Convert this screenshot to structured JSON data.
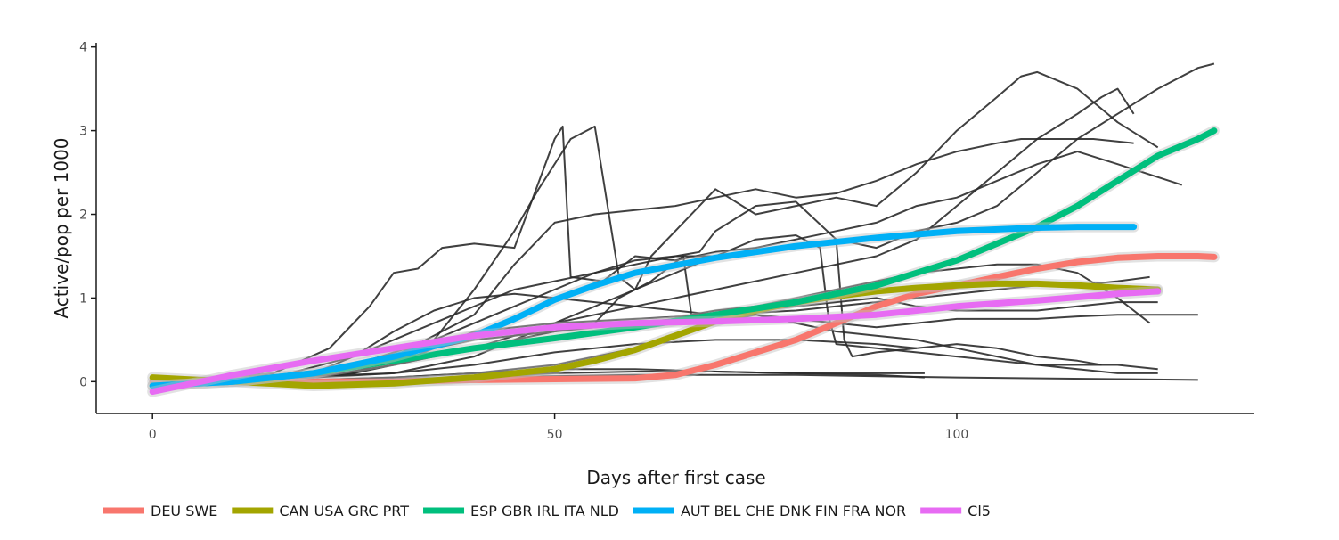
{
  "chart_data": {
    "type": "line",
    "title": "",
    "xlabel": "Days after first case",
    "ylabel": "Active/pop per 1000",
    "xlim": [
      -7,
      137
    ],
    "ylim": [
      -0.38,
      4.05
    ],
    "x_ticks": [
      0,
      50,
      100
    ],
    "y_ticks": [
      0,
      1,
      2,
      3,
      4
    ],
    "grid": false,
    "legend_position": "bottom",
    "raw_series_color": "#2b2b2b",
    "raw_series": [
      {
        "x": [
          0,
          15,
          22,
          27,
          30,
          33,
          36,
          40,
          45,
          50,
          51,
          52,
          56,
          60,
          65,
          70,
          75,
          80,
          85,
          90,
          95,
          100,
          105,
          110,
          115,
          120,
          128
        ],
        "y": [
          0,
          0.1,
          0.4,
          0.9,
          1.3,
          1.35,
          1.6,
          1.65,
          1.6,
          2.9,
          3.05,
          1.25,
          1.2,
          1.5,
          1.45,
          1.55,
          1.6,
          1.7,
          1.8,
          1.9,
          2.1,
          2.2,
          2.4,
          2.6,
          2.75,
          2.6,
          2.35
        ]
      },
      {
        "x": [
          0,
          15,
          25,
          35,
          45,
          50,
          55,
          60,
          65,
          70,
          75,
          80,
          85,
          90,
          95,
          100,
          105,
          110,
          115,
          120,
          125,
          130,
          132
        ],
        "y": [
          0,
          0.05,
          0.3,
          0.7,
          1.1,
          1.2,
          1.3,
          1.4,
          1.5,
          1.5,
          1.55,
          1.6,
          1.7,
          1.6,
          1.8,
          1.9,
          2.1,
          2.5,
          2.9,
          3.2,
          3.5,
          3.75,
          3.8
        ]
      },
      {
        "x": [
          0,
          20,
          30,
          40,
          45,
          50,
          55,
          60,
          65,
          70,
          75,
          80,
          85,
          90,
          95,
          100,
          105,
          108,
          112,
          117,
          122
        ],
        "y": [
          0,
          0.1,
          0.3,
          0.8,
          1.4,
          1.9,
          2.0,
          2.05,
          2.1,
          2.2,
          2.3,
          2.2,
          2.25,
          2.4,
          2.6,
          2.75,
          2.85,
          2.9,
          2.9,
          2.9,
          2.85
        ]
      },
      {
        "x": [
          0,
          25,
          35,
          40,
          45,
          48,
          52,
          55,
          58,
          60,
          62,
          66,
          70,
          75,
          80,
          85,
          90,
          95,
          100,
          105,
          108,
          110,
          115,
          120,
          125
        ],
        "y": [
          0,
          0.1,
          0.5,
          1.1,
          1.8,
          2.3,
          2.9,
          3.05,
          1.25,
          1.1,
          1.5,
          1.9,
          2.3,
          2.0,
          2.1,
          2.2,
          2.1,
          2.5,
          3.0,
          3.4,
          3.65,
          3.7,
          3.5,
          3.1,
          2.8
        ]
      },
      {
        "x": [
          0,
          20,
          30,
          40,
          50,
          60,
          70,
          80,
          90,
          95,
          100,
          105,
          110,
          115,
          118,
          120,
          122
        ],
        "y": [
          0,
          0.05,
          0.2,
          0.4,
          0.7,
          0.9,
          1.1,
          1.3,
          1.5,
          1.7,
          2.1,
          2.5,
          2.9,
          3.2,
          3.4,
          3.5,
          3.2
        ]
      },
      {
        "x": [
          0,
          20,
          25,
          30,
          35,
          40,
          45,
          50,
          55,
          60,
          65,
          70,
          75,
          80,
          85,
          90,
          95,
          100,
          105,
          110,
          115,
          120,
          125
        ],
        "y": [
          0,
          0.1,
          0.3,
          0.6,
          0.85,
          1.0,
          1.05,
          1.0,
          0.95,
          0.9,
          0.85,
          0.8,
          0.85,
          0.9,
          0.95,
          1.0,
          0.9,
          0.85,
          0.85,
          0.85,
          0.9,
          0.95,
          0.95
        ]
      },
      {
        "x": [
          0,
          15,
          25,
          35,
          45,
          55,
          60,
          65,
          68,
          70,
          75,
          80,
          85,
          86,
          87,
          90,
          95,
          100,
          105,
          110,
          115,
          118
        ],
        "y": [
          0,
          0.05,
          0.2,
          0.5,
          0.9,
          1.3,
          1.45,
          1.5,
          1.55,
          1.8,
          2.1,
          2.15,
          1.7,
          0.5,
          0.3,
          0.35,
          0.4,
          0.45,
          0.4,
          0.3,
          0.25,
          0.2
        ]
      },
      {
        "x": [
          0,
          20,
          30,
          40,
          50,
          55,
          58,
          62,
          66,
          67,
          70,
          75,
          80,
          85,
          90,
          95,
          100,
          105,
          110,
          115,
          120,
          124
        ],
        "y": [
          0,
          0.05,
          0.2,
          0.4,
          0.6,
          0.7,
          1.0,
          1.2,
          1.5,
          0.8,
          0.85,
          0.9,
          1.0,
          1.1,
          1.2,
          1.3,
          1.35,
          1.4,
          1.4,
          1.3,
          1.0,
          0.7
        ]
      },
      {
        "x": [
          0,
          20,
          30,
          40,
          50,
          60,
          70,
          75,
          80,
          83,
          84,
          85,
          90,
          95,
          100,
          105,
          110,
          115,
          120,
          125
        ],
        "y": [
          0,
          0.05,
          0.1,
          0.3,
          0.7,
          1.1,
          1.5,
          1.7,
          1.75,
          1.6,
          0.8,
          0.45,
          0.4,
          0.35,
          0.3,
          0.25,
          0.2,
          0.2,
          0.2,
          0.15
        ]
      },
      {
        "x": [
          0,
          20,
          30,
          40,
          50,
          60,
          65,
          70,
          75,
          80,
          85,
          90,
          95,
          100,
          105,
          110,
          115,
          120,
          125
        ],
        "y": [
          0,
          0.1,
          0.3,
          0.5,
          0.6,
          0.7,
          0.75,
          0.8,
          0.8,
          0.7,
          0.6,
          0.55,
          0.5,
          0.4,
          0.3,
          0.2,
          0.15,
          0.1,
          0.1
        ]
      },
      {
        "x": [
          0,
          20,
          30,
          40,
          50,
          60,
          70,
          75,
          80,
          85,
          90,
          95,
          100,
          105,
          110,
          115,
          120,
          125,
          130
        ],
        "y": [
          0,
          0.02,
          0.05,
          0.1,
          0.2,
          0.4,
          0.7,
          0.8,
          0.75,
          0.7,
          0.65,
          0.7,
          0.75,
          0.75,
          0.75,
          0.78,
          0.8,
          0.8,
          0.8
        ]
      },
      {
        "x": [
          0,
          20,
          30,
          40,
          50,
          60,
          70,
          80,
          90,
          96
        ],
        "y": [
          0,
          0.02,
          0.05,
          0.1,
          0.15,
          0.15,
          0.12,
          0.1,
          0.08,
          0.05
        ]
      },
      {
        "x": [
          0,
          30,
          40,
          50,
          60,
          70,
          80,
          90,
          95,
          96
        ],
        "y": [
          0,
          0.02,
          0.05,
          0.1,
          0.12,
          0.12,
          0.1,
          0.1,
          0.1,
          0.1
        ]
      },
      {
        "x": [
          0,
          20,
          40,
          60,
          80,
          100,
          120,
          130
        ],
        "y": [
          0,
          0.02,
          0.05,
          0.08,
          0.08,
          0.05,
          0.03,
          0.02
        ]
      },
      {
        "x": [
          0,
          20,
          25,
          30,
          35,
          40,
          50,
          60,
          70,
          80,
          85,
          90,
          95,
          100,
          105,
          110,
          115,
          120,
          124
        ],
        "y": [
          0,
          0.05,
          0.1,
          0.2,
          0.4,
          0.6,
          0.7,
          0.75,
          0.8,
          0.85,
          0.9,
          0.95,
          1.0,
          1.05,
          1.1,
          1.15,
          1.15,
          1.2,
          1.25
        ]
      },
      {
        "x": [
          0,
          30,
          40,
          50,
          60,
          70,
          80,
          90,
          95
        ],
        "y": [
          0,
          0.1,
          0.2,
          0.35,
          0.45,
          0.5,
          0.5,
          0.45,
          0.4
        ]
      }
    ],
    "series": [
      {
        "name": "DEU SWE",
        "color": "#f8766d",
        "x": [
          0,
          10,
          20,
          30,
          40,
          50,
          60,
          65,
          70,
          75,
          80,
          85,
          90,
          95,
          100,
          105,
          110,
          115,
          120,
          125,
          130,
          132
        ],
        "y": [
          0,
          0,
          0,
          0,
          0.02,
          0.03,
          0.04,
          0.08,
          0.2,
          0.35,
          0.5,
          0.7,
          0.9,
          1.05,
          1.15,
          1.25,
          1.35,
          1.43,
          1.48,
          1.5,
          1.5,
          1.49
        ]
      },
      {
        "name": "CAN USA GRC PRT",
        "color": "#a3a500",
        "x": [
          0,
          10,
          20,
          30,
          40,
          50,
          55,
          60,
          65,
          70,
          75,
          80,
          85,
          90,
          95,
          100,
          105,
          110,
          115,
          120,
          125
        ],
        "y": [
          0.05,
          0,
          -0.05,
          -0.02,
          0.05,
          0.15,
          0.25,
          0.38,
          0.55,
          0.72,
          0.85,
          0.95,
          1.02,
          1.08,
          1.12,
          1.15,
          1.17,
          1.17,
          1.15,
          1.12,
          1.1
        ]
      },
      {
        "name": "ESP GBR IRL ITA NLD",
        "color": "#00bf7d",
        "x": [
          0,
          10,
          20,
          30,
          40,
          50,
          60,
          70,
          80,
          90,
          100,
          105,
          110,
          115,
          120,
          125,
          130,
          132
        ],
        "y": [
          -0.05,
          0,
          0.1,
          0.25,
          0.4,
          0.52,
          0.65,
          0.8,
          0.95,
          1.15,
          1.45,
          1.65,
          1.85,
          2.1,
          2.4,
          2.7,
          2.9,
          3.0
        ]
      },
      {
        "name": "AUT BEL CHE DNK FIN FRA NOR",
        "color": "#00b0f6",
        "x": [
          0,
          10,
          20,
          30,
          40,
          45,
          50,
          55,
          60,
          70,
          80,
          90,
          100,
          110,
          115,
          122
        ],
        "y": [
          -0.05,
          0,
          0.1,
          0.3,
          0.55,
          0.75,
          0.98,
          1.15,
          1.3,
          1.48,
          1.62,
          1.72,
          1.8,
          1.84,
          1.85,
          1.85
        ]
      },
      {
        "name": "Cl5",
        "color": "#e76bf3",
        "x": [
          0,
          10,
          20,
          30,
          40,
          50,
          60,
          70,
          80,
          90,
          100,
          110,
          120,
          125
        ],
        "y": [
          -0.12,
          0.08,
          0.25,
          0.4,
          0.55,
          0.65,
          0.7,
          0.72,
          0.75,
          0.8,
          0.9,
          0.97,
          1.05,
          1.08
        ]
      }
    ]
  }
}
